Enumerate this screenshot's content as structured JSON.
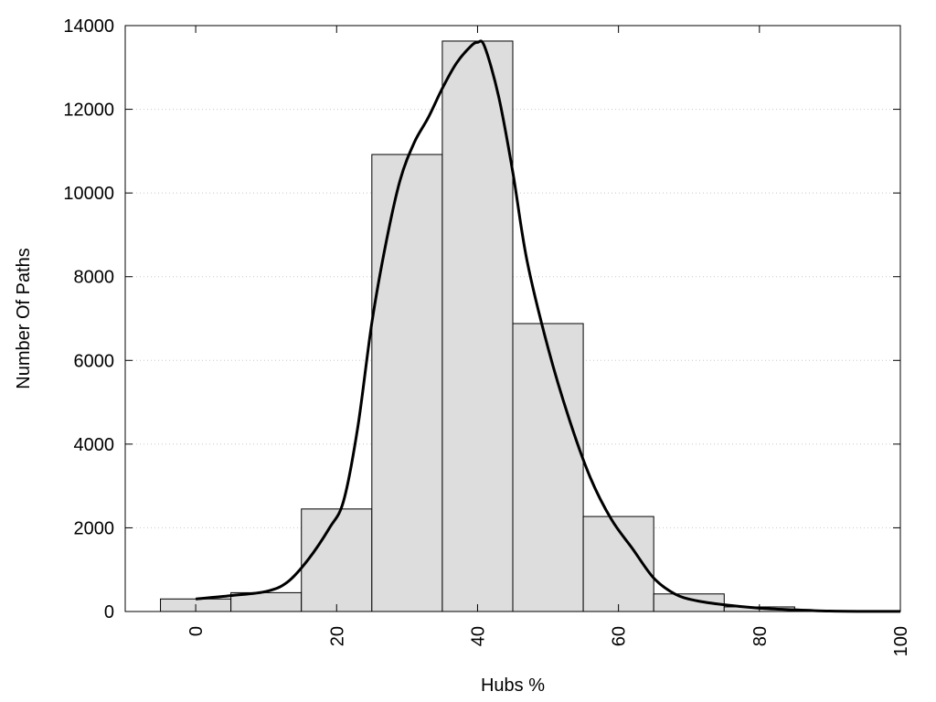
{
  "chart_data": {
    "type": "bar",
    "subtype": "histogram-with-density-curve",
    "xlabel": "Hubs %",
    "ylabel": "Number Of Paths",
    "title": "",
    "xlim": [
      -10,
      100
    ],
    "ylim": [
      0,
      14000
    ],
    "x_ticks": [
      0,
      20,
      40,
      60,
      80,
      100
    ],
    "y_ticks": [
      0,
      2000,
      4000,
      6000,
      8000,
      10000,
      12000,
      14000
    ],
    "grid": "horizontal-dotted",
    "legend": "none",
    "bin_width": 10,
    "bins": [
      {
        "center": 0,
        "value": 300
      },
      {
        "center": 10,
        "value": 450
      },
      {
        "center": 20,
        "value": 2450
      },
      {
        "center": 30,
        "value": 10920
      },
      {
        "center": 40,
        "value": 13630
      },
      {
        "center": 50,
        "value": 6880
      },
      {
        "center": 60,
        "value": 2270
      },
      {
        "center": 70,
        "value": 420
      },
      {
        "center": 80,
        "value": 110
      },
      {
        "center": 90,
        "value": 15
      },
      {
        "center": 100,
        "value": 5
      }
    ],
    "curve": {
      "x": [
        0,
        5,
        10,
        13,
        16,
        19,
        21,
        23,
        25,
        27,
        29,
        31,
        33,
        35,
        37,
        39,
        40,
        41,
        43,
        45,
        47,
        50,
        53,
        56,
        59,
        62,
        65,
        68,
        71,
        75,
        80,
        85,
        90,
        95,
        100
      ],
      "y": [
        300,
        380,
        480,
        700,
        1250,
        2000,
        2650,
        4400,
        6900,
        8800,
        10300,
        11200,
        11800,
        12500,
        13100,
        13500,
        13600,
        13500,
        12300,
        10500,
        8400,
        6300,
        4600,
        3200,
        2200,
        1500,
        800,
        420,
        260,
        160,
        80,
        40,
        10,
        3,
        2
      ]
    },
    "colors": {
      "bar_fill": "#dddddd",
      "bar_stroke": "#000000",
      "curve": "#000000",
      "grid": "#c8c8c8"
    }
  }
}
